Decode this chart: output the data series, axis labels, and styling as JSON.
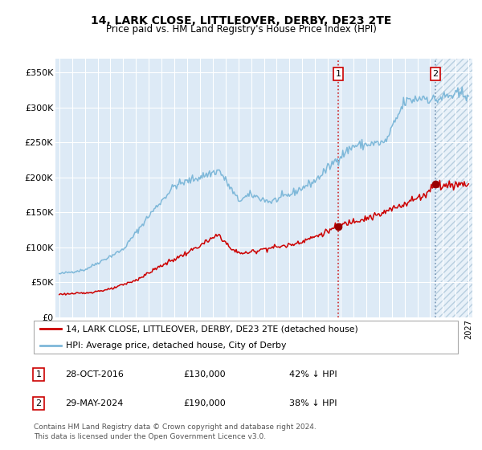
{
  "title": "14, LARK CLOSE, LITTLEOVER, DERBY, DE23 2TE",
  "subtitle": "Price paid vs. HM Land Registry's House Price Index (HPI)",
  "legend_line1": "14, LARK CLOSE, LITTLEOVER, DERBY, DE23 2TE (detached house)",
  "legend_line2": "HPI: Average price, detached house, City of Derby",
  "transaction1": {
    "label": "1",
    "date": "28-OCT-2016",
    "price": 130000,
    "hpi_pct": "42% ↓ HPI",
    "x": 2016.82
  },
  "transaction2": {
    "label": "2",
    "date": "29-MAY-2024",
    "price": 190000,
    "hpi_pct": "38% ↓ HPI",
    "x": 2024.41
  },
  "footnote1": "Contains HM Land Registry data © Crown copyright and database right 2024.",
  "footnote2": "This data is licensed under the Open Government Licence v3.0.",
  "hpi_color": "#7eb8d9",
  "price_color": "#cc0000",
  "marker_color": "#990000",
  "bg_color": "#ddeaf6",
  "grid_color": "#ffffff",
  "ylim": [
    0,
    370000
  ],
  "xlim_start": 1994.7,
  "xlim_end": 2027.3
}
